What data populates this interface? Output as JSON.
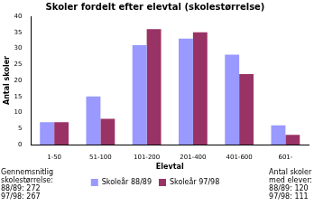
{
  "chart_data": {
    "type": "bar",
    "title": "Skoler fordelt efter elevtal (skolestørrelse)",
    "x_label": "Elevtal",
    "y_label": "Antal skoler",
    "categories": [
      "1-50",
      "51-100",
      "101-200",
      "201-400",
      "401-600",
      "601-"
    ],
    "series": [
      {
        "name": "Skoleår 88/89",
        "color": "#9999ff",
        "values": [
          7,
          15,
          31,
          33,
          28,
          6
        ]
      },
      {
        "name": "Skoleår 97/98",
        "color": "#993366",
        "values": [
          7,
          8,
          36,
          35,
          22,
          3
        ]
      }
    ],
    "ylim": [
      0,
      40
    ],
    "yticks": [
      0,
      5,
      10,
      15,
      20,
      25,
      30,
      35,
      40
    ],
    "grid": false,
    "legend": "bottom",
    "annotations": [
      [
        "Gennemsnitlig",
        "skolestørrelse:",
        "88/89: 272",
        "97/98: 267"
      ],
      [
        "Antal skoler",
        "med elever:",
        "88/89: 120",
        "97/98: 111"
      ]
    ]
  }
}
